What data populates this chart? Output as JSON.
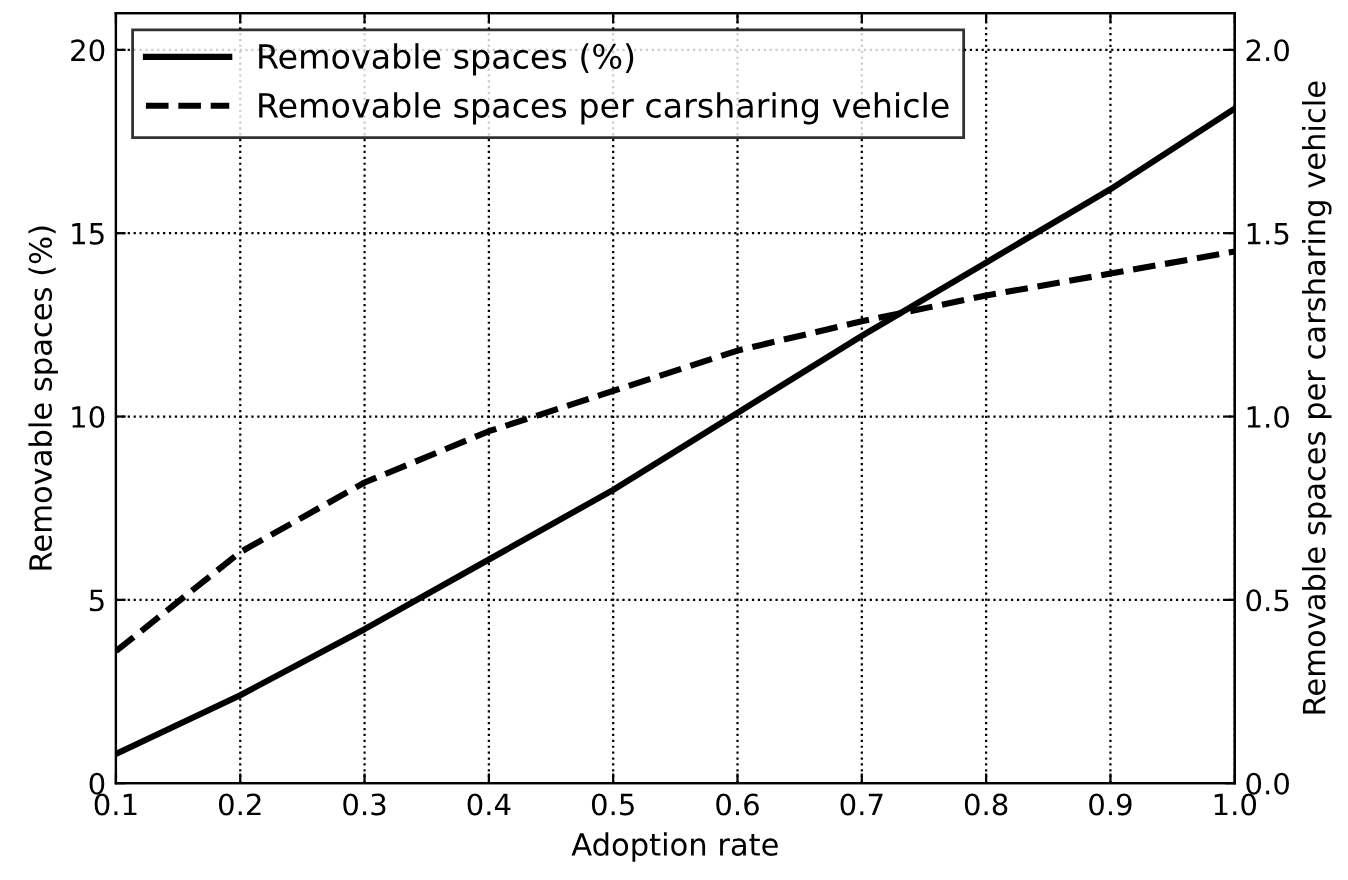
{
  "chart_data": {
    "type": "line",
    "xlabel": "Adoption rate",
    "ylabel": "Removable spaces (%)",
    "y2label": "Removable spaces per carsharing vehicle",
    "x": [
      0.1,
      0.2,
      0.3,
      0.4,
      0.5,
      0.6,
      0.7,
      0.8,
      0.9,
      1.0
    ],
    "series": [
      {
        "name": "Removable spaces (%)",
        "color": "#000000",
        "line_style": "solid",
        "values": [
          0.8,
          2.4,
          4.2,
          6.1,
          8.0,
          10.1,
          12.2,
          14.2,
          16.2,
          18.4
        ]
      },
      {
        "name": "Removable spaces per carsharing vehicle",
        "color": "#000000",
        "line_style": "dashed",
        "axis": "y2",
        "values": [
          0.36,
          0.63,
          0.82,
          0.96,
          1.07,
          1.18,
          1.26,
          1.33,
          1.39,
          1.45
        ]
      }
    ],
    "xlim": [
      0.1,
      1.0
    ],
    "xticks": [
      0.1,
      0.2,
      0.3,
      0.4,
      0.5,
      0.6,
      0.7,
      0.8,
      0.9,
      {
        "value": 1.0,
        "label": "1.0"
      }
    ],
    "ylim": [
      0,
      21
    ],
    "yticks": [
      0,
      5,
      10,
      15,
      20
    ],
    "y2lim": [
      0,
      2.1
    ],
    "y2ticks": [
      {
        "value": 0,
        "label": "0.0"
      },
      0.5,
      {
        "value": 1,
        "label": "1.0"
      },
      1.5,
      {
        "value": 2,
        "label": "2.0"
      }
    ],
    "grid": true,
    "legend": "top left",
    "marker": "none"
  }
}
